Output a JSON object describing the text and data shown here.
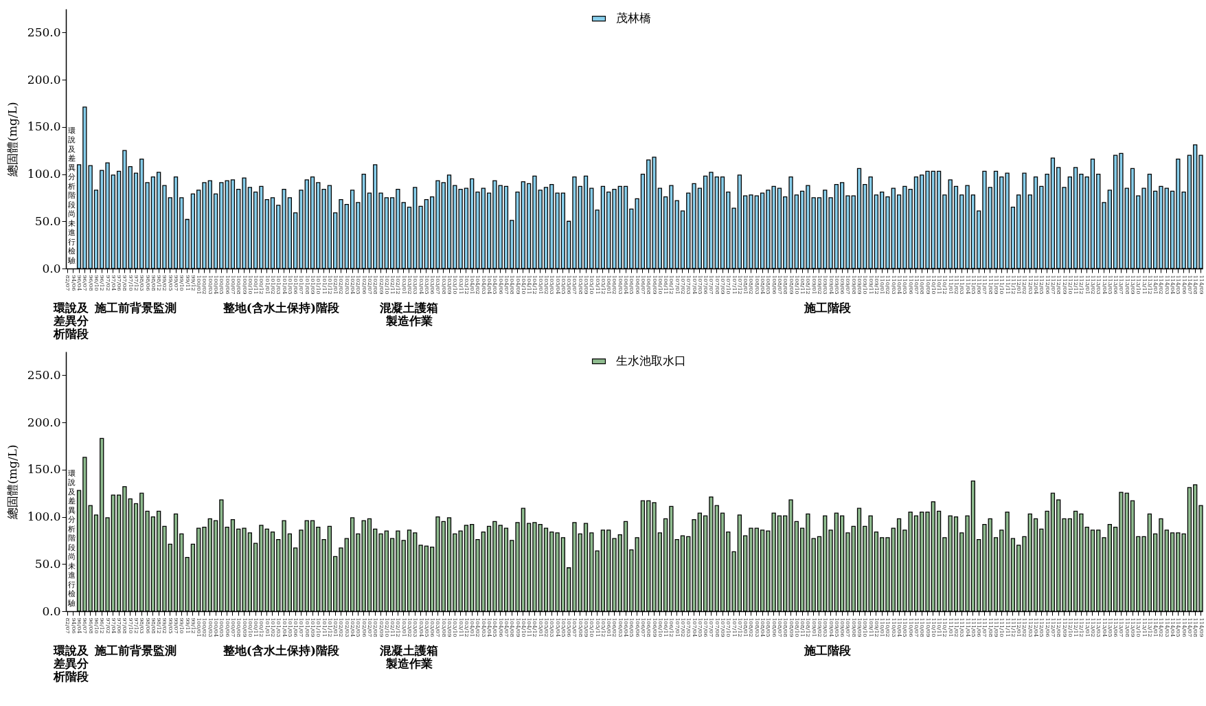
{
  "chart_data": [
    {
      "type": "bar",
      "ylabel": "總固體(mg/L)",
      "ylim": [
        0,
        275
      ],
      "yticks": [
        {
          "value": 0,
          "label": "0.0"
        },
        {
          "value": 50,
          "label": "50.0"
        },
        {
          "value": 100,
          "label": "100.0"
        },
        {
          "value": 150,
          "label": "150.0"
        },
        {
          "value": 200,
          "label": "200.0"
        },
        {
          "value": 250,
          "label": "250.0"
        }
      ],
      "legend": "top",
      "categories": [
        "82/07",
        "94/06",
        "96/04",
        "96/07",
        "96/08",
        "96/10",
        "96/12",
        "97/02",
        "97/04",
        "97/06",
        "97/08",
        "97/10",
        "97/12",
        "98/03",
        "98/06",
        "98/08",
        "98/12",
        "99/02",
        "99/05",
        "99/07",
        "99/10",
        "99/11",
        "99/12",
        "100/01",
        "100/02",
        "100/03",
        "100/04",
        "100/05",
        "100/06",
        "100/07",
        "100/08",
        "100/09",
        "100/10",
        "100/11",
        "100/12",
        "101/01",
        "101/02",
        "101/03",
        "101/04",
        "101/05",
        "101/06",
        "101/07",
        "101/08",
        "101/09",
        "101/10",
        "101/11",
        "101/12",
        "102/01",
        "102/02",
        "102/03",
        "102/04",
        "102/05",
        "102/06",
        "102/07",
        "102/08",
        "102/09",
        "102/10",
        "102/11",
        "102/12",
        "103/01",
        "103/02",
        "103/03",
        "103/04",
        "103/05",
        "103/06",
        "103/07",
        "103/08",
        "103/09",
        "103/10",
        "103/11",
        "103/12",
        "104/01",
        "104/02",
        "104/03",
        "104/04",
        "104/05",
        "104/06",
        "104/07",
        "104/08",
        "104/09",
        "104/10",
        "104/11",
        "104/12",
        "105/01",
        "105/02",
        "105/03",
        "105/04",
        "105/05",
        "105/06",
        "105/07",
        "105/08",
        "105/09",
        "105/10",
        "105/11",
        "105/12",
        "106/01",
        "106/02",
        "106/03",
        "106/04",
        "106/05",
        "106/06",
        "106/07",
        "106/08",
        "106/09",
        "106/10",
        "106/11",
        "106/12",
        "107/01",
        "107/02",
        "107/03",
        "107/04",
        "107/05",
        "107/06",
        "107/07",
        "107/08",
        "107/09",
        "107/10",
        "107/11",
        "107/12",
        "108/01",
        "108/02",
        "108/03",
        "108/04",
        "108/05",
        "108/06",
        "108/07",
        "108/08",
        "108/09",
        "108/10",
        "108/11",
        "108/12",
        "109/01",
        "109/02",
        "109/03",
        "109/04",
        "109/05",
        "109/06",
        "109/07",
        "109/08",
        "109/09",
        "109/10",
        "109/11",
        "109/12",
        "110/01",
        "110/02",
        "110/03",
        "110/04",
        "110/05",
        "110/06",
        "110/07",
        "110/08",
        "110/09",
        "110/10",
        "110/11",
        "110/12",
        "111/01",
        "111/02",
        "111/03",
        "111/04",
        "111/05",
        "111/06",
        "111/07",
        "111/08",
        "111/09",
        "111/10",
        "111/11",
        "111/12",
        "112/01",
        "112/02",
        "112/03",
        "112/04",
        "112/05",
        "112/06",
        "112/07",
        "112/08",
        "112/09",
        "112/10",
        "112/11",
        "112/12",
        "113/01",
        "113/02",
        "113/03",
        "113/04",
        "113/05",
        "113/06",
        "113/07",
        "113/08",
        "113/09",
        "113/10",
        "113/11",
        "113/12",
        "114/01",
        "114/02",
        "114/03",
        "114/04",
        "114/05",
        "114/06",
        "114/07",
        "114/08",
        "114/09"
      ],
      "series": [
        {
          "name": "茂林橋",
          "color": "#87ceeb",
          "values": [
            null,
            null,
            110,
            171,
            109,
            83,
            104,
            112,
            99,
            103,
            125,
            108,
            101,
            116,
            91,
            97,
            102,
            88,
            75,
            97,
            75,
            52,
            79,
            83,
            91,
            93,
            79,
            91,
            93,
            94,
            84,
            96,
            86,
            81,
            87,
            73,
            75,
            67,
            84,
            75,
            59,
            83,
            94,
            97,
            91,
            84,
            88,
            59,
            73,
            68,
            83,
            70,
            100,
            80,
            110,
            80,
            75,
            75,
            84,
            70,
            65,
            86,
            66,
            73,
            76,
            93,
            91,
            99,
            88,
            84,
            85,
            95,
            81,
            85,
            80,
            93,
            88,
            87,
            51,
            81,
            92,
            90,
            98,
            83,
            86,
            89,
            80,
            80,
            50,
            97,
            87,
            98,
            85,
            62,
            87,
            81,
            84,
            87,
            87,
            63,
            74,
            100,
            115,
            118,
            85,
            76,
            88,
            72,
            61,
            80,
            90,
            85,
            98,
            102,
            97,
            97,
            81,
            64,
            99,
            77,
            78,
            77,
            80,
            83,
            87,
            85,
            76,
            97,
            78,
            82,
            88,
            75,
            75,
            83,
            75,
            89,
            91,
            77,
            77,
            106,
            89,
            97,
            78,
            81,
            76,
            85,
            78,
            87,
            84,
            97,
            99,
            103,
            103,
            103,
            78,
            94,
            87,
            78,
            88,
            78,
            61,
            103,
            86,
            103,
            97,
            101,
            65,
            78,
            101,
            78,
            97,
            87,
            100,
            117,
            107,
            86,
            97,
            107,
            100,
            97,
            116,
            100,
            70,
            83,
            120,
            122,
            85,
            106,
            77,
            85,
            100,
            82,
            87,
            85,
            82,
            116,
            81,
            120,
            131,
            120
          ]
        }
      ],
      "annotations": [
        "環說及差異分析階段尚未進行檢驗",
        "環說及差異分析階段",
        "施工前背景監測",
        "整地(含水土保持)階段",
        "混凝土護箱製造作業",
        "施工階段"
      ]
    },
    {
      "type": "bar",
      "ylabel": "總固體(mg/L)",
      "ylim": [
        0,
        275
      ],
      "yticks": [
        {
          "value": 0,
          "label": "0.0"
        },
        {
          "value": 50,
          "label": "50.0"
        },
        {
          "value": 100,
          "label": "100.0"
        },
        {
          "value": 150,
          "label": "150.0"
        },
        {
          "value": 200,
          "label": "200.0"
        },
        {
          "value": 250,
          "label": "250.0"
        }
      ],
      "legend": "top",
      "categories": [
        "82/07",
        "94/06",
        "96/04",
        "96/07",
        "96/08",
        "96/10",
        "96/12",
        "97/02",
        "97/04",
        "97/06",
        "97/08",
        "97/10",
        "97/12",
        "98/03",
        "98/06",
        "98/08",
        "98/12",
        "99/02",
        "99/05",
        "99/07",
        "99/10",
        "99/11",
        "99/12",
        "100/01",
        "100/02",
        "100/03",
        "100/04",
        "100/05",
        "100/06",
        "100/07",
        "100/08",
        "100/09",
        "100/10",
        "100/11",
        "100/12",
        "101/01",
        "101/02",
        "101/03",
        "101/04",
        "101/05",
        "101/06",
        "101/07",
        "101/08",
        "101/09",
        "101/10",
        "101/11",
        "101/12",
        "102/01",
        "102/02",
        "102/03",
        "102/04",
        "102/05",
        "102/06",
        "102/07",
        "102/08",
        "102/09",
        "102/10",
        "102/11",
        "102/12",
        "103/01",
        "103/02",
        "103/03",
        "103/04",
        "103/05",
        "103/06",
        "103/07",
        "103/08",
        "103/09",
        "103/10",
        "103/11",
        "103/12",
        "104/01",
        "104/02",
        "104/03",
        "104/04",
        "104/05",
        "104/06",
        "104/07",
        "104/08",
        "104/09",
        "104/10",
        "104/11",
        "104/12",
        "105/01",
        "105/02",
        "105/03",
        "105/04",
        "105/05",
        "105/06",
        "105/07",
        "105/08",
        "105/09",
        "105/10",
        "105/11",
        "105/12",
        "106/01",
        "106/02",
        "106/03",
        "106/04",
        "106/05",
        "106/06",
        "106/07",
        "106/08",
        "106/09",
        "106/10",
        "106/11",
        "106/12",
        "107/01",
        "107/02",
        "107/03",
        "107/04",
        "107/05",
        "107/06",
        "107/07",
        "107/08",
        "107/09",
        "107/10",
        "107/11",
        "107/12",
        "108/01",
        "108/02",
        "108/03",
        "108/04",
        "108/05",
        "108/06",
        "108/07",
        "108/08",
        "108/09",
        "108/10",
        "108/11",
        "108/12",
        "109/01",
        "109/02",
        "109/03",
        "109/04",
        "109/05",
        "109/06",
        "109/07",
        "109/08",
        "109/09",
        "109/10",
        "109/11",
        "109/12",
        "110/01",
        "110/02",
        "110/03",
        "110/04",
        "110/05",
        "110/06",
        "110/07",
        "110/08",
        "110/09",
        "110/10",
        "110/11",
        "110/12",
        "111/01",
        "111/02",
        "111/03",
        "111/04",
        "111/05",
        "111/06",
        "111/07",
        "111/08",
        "111/09",
        "111/10",
        "111/11",
        "111/12",
        "112/01",
        "112/02",
        "112/03",
        "112/04",
        "112/05",
        "112/06",
        "112/07",
        "112/08",
        "112/09",
        "112/10",
        "112/11",
        "112/12",
        "113/01",
        "113/02",
        "113/03",
        "113/04",
        "113/05",
        "113/06",
        "113/07",
        "113/08",
        "113/09",
        "113/10",
        "113/11",
        "113/12",
        "114/01",
        "114/02",
        "114/03",
        "114/04",
        "114/05",
        "114/06",
        "114/07",
        "114/08",
        "114/09"
      ],
      "series": [
        {
          "name": "生水池取水口",
          "color": "#8fbc8f",
          "values": [
            null,
            null,
            128,
            163,
            112,
            102,
            183,
            99,
            123,
            123,
            132,
            119,
            114,
            125,
            106,
            100,
            106,
            90,
            71,
            103,
            82,
            57,
            71,
            88,
            89,
            98,
            96,
            118,
            89,
            97,
            87,
            88,
            83,
            72,
            91,
            87,
            84,
            76,
            96,
            82,
            67,
            86,
            96,
            96,
            89,
            76,
            90,
            58,
            67,
            77,
            99,
            82,
            96,
            98,
            87,
            82,
            85,
            77,
            85,
            75,
            86,
            83,
            70,
            69,
            68,
            100,
            95,
            99,
            82,
            85,
            91,
            92,
            76,
            84,
            90,
            95,
            91,
            88,
            75,
            94,
            109,
            93,
            94,
            92,
            88,
            84,
            83,
            78,
            46,
            94,
            82,
            93,
            83,
            64,
            86,
            86,
            77,
            81,
            95,
            65,
            78,
            117,
            117,
            115,
            83,
            98,
            111,
            76,
            80,
            79,
            97,
            104,
            101,
            121,
            112,
            104,
            84,
            63,
            102,
            80,
            88,
            88,
            86,
            85,
            104,
            101,
            101,
            118,
            95,
            88,
            103,
            77,
            79,
            101,
            86,
            104,
            101,
            83,
            90,
            109,
            90,
            101,
            84,
            78,
            78,
            88,
            98,
            86,
            105,
            101,
            105,
            105,
            116,
            106,
            78,
            101,
            100,
            83,
            101,
            138,
            76,
            92,
            98,
            78,
            86,
            105,
            77,
            70,
            79,
            103,
            98,
            87,
            106,
            125,
            118,
            98,
            98,
            106,
            103,
            89,
            86,
            86,
            78,
            92,
            89,
            126,
            125,
            117,
            79,
            79,
            103,
            82,
            98,
            86,
            83,
            83,
            82,
            131,
            134,
            112
          ]
        }
      ],
      "annotations": [
        "環說及差異分析階段尚未進行檢驗",
        "環說及差異分析階段",
        "施工前背景監測",
        "整地(含水土保持)階段",
        "混凝土護箱製造作業",
        "施工階段"
      ]
    }
  ]
}
